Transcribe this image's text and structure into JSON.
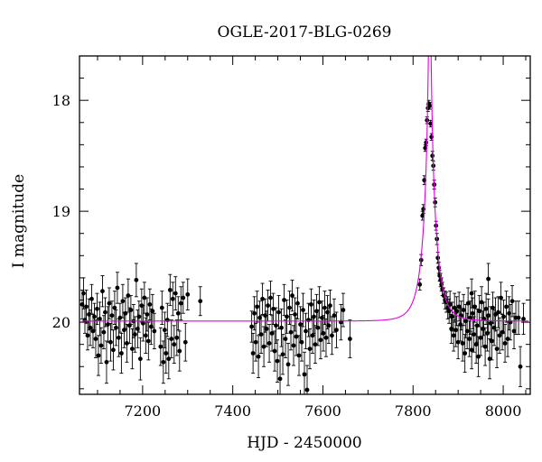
{
  "chart_data": {
    "type": "scatter",
    "title": "OGLE-2017-BLG-0269",
    "xlabel": "HJD - 2450000",
    "ylabel": "I magnitude",
    "xlim": [
      7060,
      8060
    ],
    "ylim": [
      20.65,
      17.6
    ],
    "y_inverted": true,
    "xticks": [
      7200,
      7400,
      7600,
      7800,
      8000
    ],
    "yticks": [
      18,
      19,
      20
    ],
    "grid": false,
    "colors": {
      "points": "#000000",
      "model": "#e000e0",
      "axes": "#000000"
    },
    "model": {
      "name": "",
      "baseline_mag": 19.99,
      "t0": 7837,
      "u0": 0.012,
      "tE": 28
    },
    "series": [
      {
        "name": "",
        "points": [
          [
            7066,
            19.84,
            0.13
          ],
          [
            7069,
            19.74,
            0.14
          ],
          [
            7072,
            19.98,
            0.12
          ],
          [
            7075,
            19.86,
            0.15
          ],
          [
            7078,
            20.12,
            0.13
          ],
          [
            7081,
            19.93,
            0.14
          ],
          [
            7084,
            20.05,
            0.16
          ],
          [
            7087,
            19.79,
            0.13
          ],
          [
            7090,
            20.08,
            0.15
          ],
          [
            7093,
            19.95,
            0.12
          ],
          [
            7096,
            20.15,
            0.17
          ],
          [
            7099,
            19.88,
            0.14
          ],
          [
            7102,
            20.3,
            0.18
          ],
          [
            7105,
            19.97,
            0.15
          ],
          [
            7108,
            20.21,
            0.16
          ],
          [
            7111,
            19.72,
            0.14
          ],
          [
            7114,
            20.09,
            0.15
          ],
          [
            7117,
            19.91,
            0.13
          ],
          [
            7120,
            20.36,
            0.19
          ],
          [
            7123,
            20.02,
            0.16
          ],
          [
            7126,
            19.83,
            0.14
          ],
          [
            7129,
            20.18,
            0.17
          ],
          [
            7132,
            19.94,
            0.13
          ],
          [
            7135,
            20.25,
            0.18
          ],
          [
            7138,
            19.87,
            0.15
          ],
          [
            7141,
            20.05,
            0.16
          ],
          [
            7144,
            19.69,
            0.14
          ],
          [
            7147,
            20.14,
            0.17
          ],
          [
            7150,
            19.96,
            0.13
          ],
          [
            7153,
            20.28,
            0.18
          ],
          [
            7156,
            19.81,
            0.15
          ],
          [
            7159,
            20.07,
            0.16
          ],
          [
            7162,
            19.92,
            0.14
          ],
          [
            7165,
            20.19,
            0.17
          ],
          [
            7168,
            19.76,
            0.15
          ],
          [
            7171,
            20.03,
            0.16
          ],
          [
            7174,
            19.89,
            0.13
          ],
          [
            7177,
            20.24,
            0.18
          ],
          [
            7180,
            19.99,
            0.15
          ],
          [
            7183,
            20.11,
            0.16
          ],
          [
            7186,
            19.62,
            0.15
          ],
          [
            7189,
            20.06,
            0.17
          ],
          [
            7192,
            19.95,
            0.14
          ],
          [
            7195,
            20.33,
            0.19
          ],
          [
            7198,
            19.85,
            0.15
          ],
          [
            7201,
            20.01,
            0.16
          ],
          [
            7204,
            19.78,
            0.14
          ],
          [
            7207,
            20.12,
            0.16
          ],
          [
            7210,
            19.93,
            0.15
          ],
          [
            7213,
            20.17,
            0.17
          ],
          [
            7216,
            19.84,
            0.14
          ],
          [
            7219,
            20.04,
            0.16
          ],
          [
            7222,
            19.9,
            0.15
          ],
          [
            7226,
            20.08,
            0.16
          ],
          [
            7240,
            20.22,
            0.17
          ],
          [
            7243,
            19.87,
            0.15
          ],
          [
            7246,
            20.36,
            0.19
          ],
          [
            7249,
            20.07,
            0.16
          ],
          [
            7252,
            20.28,
            0.18
          ],
          [
            7255,
            19.98,
            0.15
          ],
          [
            7258,
            20.33,
            0.18
          ],
          [
            7261,
            19.71,
            0.14
          ],
          [
            7264,
            20.15,
            0.17
          ],
          [
            7267,
            19.79,
            0.15
          ],
          [
            7270,
            20.2,
            0.17
          ],
          [
            7273,
            19.74,
            0.15
          ],
          [
            7276,
            20.14,
            0.16
          ],
          [
            7279,
            19.92,
            0.15
          ],
          [
            7282,
            20.26,
            0.18
          ],
          [
            7285,
            19.83,
            0.15
          ],
          [
            7290,
            19.78,
            0.14
          ],
          [
            7295,
            20.18,
            0.17
          ],
          [
            7300,
            19.75,
            0.14
          ],
          [
            7328,
            19.81,
            0.13
          ],
          [
            7442,
            20.04,
            0.14
          ],
          [
            7445,
            20.28,
            0.18
          ],
          [
            7448,
            19.92,
            0.15
          ],
          [
            7451,
            20.18,
            0.17
          ],
          [
            7454,
            19.86,
            0.14
          ],
          [
            7457,
            20.31,
            0.19
          ],
          [
            7460,
            19.96,
            0.15
          ],
          [
            7463,
            20.11,
            0.17
          ],
          [
            7466,
            19.79,
            0.14
          ],
          [
            7469,
            20.22,
            0.18
          ],
          [
            7472,
            19.94,
            0.15
          ],
          [
            7475,
            20.06,
            0.16
          ],
          [
            7478,
            19.85,
            0.14
          ],
          [
            7481,
            20.19,
            0.17
          ],
          [
            7484,
            19.78,
            0.15
          ],
          [
            7487,
            20.1,
            0.16
          ],
          [
            7490,
            19.88,
            0.14
          ],
          [
            7493,
            20.26,
            0.18
          ],
          [
            7496,
            20.03,
            0.16
          ],
          [
            7499,
            20.35,
            0.19
          ],
          [
            7502,
            19.91,
            0.15
          ],
          [
            7505,
            20.51,
            0.21
          ],
          [
            7508,
            20.05,
            0.17
          ],
          [
            7511,
            20.29,
            0.18
          ],
          [
            7514,
            19.8,
            0.14
          ],
          [
            7517,
            20.15,
            0.17
          ],
          [
            7520,
            19.95,
            0.15
          ],
          [
            7523,
            20.38,
            0.19
          ],
          [
            7526,
            19.87,
            0.15
          ],
          [
            7529,
            20.09,
            0.16
          ],
          [
            7532,
            19.76,
            0.14
          ],
          [
            7535,
            20.21,
            0.18
          ],
          [
            7538,
            19.93,
            0.15
          ],
          [
            7541,
            20.13,
            0.17
          ],
          [
            7544,
            19.83,
            0.14
          ],
          [
            7547,
            20.3,
            0.18
          ],
          [
            7550,
            20.02,
            0.16
          ],
          [
            7553,
            20.18,
            0.17
          ],
          [
            7556,
            19.89,
            0.15
          ],
          [
            7559,
            20.47,
            0.2
          ],
          [
            7562,
            20.08,
            0.16
          ],
          [
            7565,
            20.61,
            0.22
          ],
          [
            7568,
            19.98,
            0.15
          ],
          [
            7571,
            20.24,
            0.18
          ],
          [
            7574,
            19.84,
            0.14
          ],
          [
            7577,
            20.12,
            0.16
          ],
          [
            7580,
            19.95,
            0.15
          ],
          [
            7583,
            20.2,
            0.17
          ],
          [
            7586,
            19.9,
            0.15
          ],
          [
            7589,
            20.05,
            0.16
          ],
          [
            7592,
            19.82,
            0.14
          ],
          [
            7595,
            20.16,
            0.17
          ],
          [
            7598,
            19.96,
            0.15
          ],
          [
            7601,
            20.1,
            0.16
          ],
          [
            7604,
            19.87,
            0.15
          ],
          [
            7607,
            20.14,
            0.17
          ],
          [
            7610,
            19.91,
            0.15
          ],
          [
            7613,
            20.03,
            0.16
          ],
          [
            7616,
            19.85,
            0.14
          ],
          [
            7620,
            20.12,
            0.17
          ],
          [
            7625,
            19.94,
            0.15
          ],
          [
            7630,
            20.07,
            0.16
          ],
          [
            7640,
            20.0,
            0.16
          ],
          [
            7645,
            19.89,
            0.15
          ],
          [
            7660,
            20.15,
            0.17
          ],
          [
            7815,
            19.66,
            0.05
          ],
          [
            7818,
            19.44,
            0.05
          ],
          [
            7821,
            19.04,
            0.04
          ],
          [
            7823,
            18.98,
            0.04
          ],
          [
            7825,
            18.72,
            0.04
          ],
          [
            7827,
            18.43,
            0.03
          ],
          [
            7829,
            18.38,
            0.03
          ],
          [
            7831,
            18.18,
            0.03
          ],
          [
            7833,
            18.07,
            0.03
          ],
          [
            7835,
            18.03,
            0.03
          ],
          [
            7837,
            18.05,
            0.03
          ],
          [
            7839,
            18.21,
            0.03
          ],
          [
            7841,
            18.33,
            0.03
          ],
          [
            7843,
            18.5,
            0.04
          ],
          [
            7845,
            18.59,
            0.04
          ],
          [
            7847,
            18.76,
            0.04
          ],
          [
            7849,
            18.92,
            0.04
          ],
          [
            7851,
            19.13,
            0.04
          ],
          [
            7853,
            19.25,
            0.05
          ],
          [
            7855,
            19.42,
            0.05
          ],
          [
            7857,
            19.51,
            0.05
          ],
          [
            7859,
            19.58,
            0.05
          ],
          [
            7861,
            19.62,
            0.06
          ],
          [
            7863,
            19.66,
            0.06
          ],
          [
            7865,
            19.7,
            0.06
          ],
          [
            7868,
            19.76,
            0.07
          ],
          [
            7871,
            19.8,
            0.08
          ],
          [
            7874,
            19.82,
            0.09
          ],
          [
            7877,
            19.87,
            0.1
          ],
          [
            7880,
            19.9,
            0.11
          ],
          [
            7882,
            19.84,
            0.12
          ],
          [
            7885,
            20.06,
            0.13
          ],
          [
            7887,
            19.95,
            0.13
          ],
          [
            7890,
            20.12,
            0.14
          ],
          [
            7892,
            19.87,
            0.13
          ],
          [
            7895,
            20.07,
            0.15
          ],
          [
            7897,
            19.9,
            0.13
          ],
          [
            7900,
            20.18,
            0.15
          ],
          [
            7902,
            19.86,
            0.13
          ],
          [
            7905,
            20.02,
            0.15
          ],
          [
            7907,
            19.94,
            0.13
          ],
          [
            7910,
            20.19,
            0.16
          ],
          [
            7912,
            19.89,
            0.14
          ],
          [
            7915,
            20.28,
            0.17
          ],
          [
            7917,
            19.99,
            0.15
          ],
          [
            7920,
            20.08,
            0.16
          ],
          [
            7922,
            19.83,
            0.14
          ],
          [
            7925,
            20.15,
            0.16
          ],
          [
            7927,
            19.96,
            0.15
          ],
          [
            7930,
            20.25,
            0.17
          ],
          [
            7932,
            19.92,
            0.14
          ],
          [
            7935,
            20.11,
            0.16
          ],
          [
            7937,
            19.86,
            0.14
          ],
          [
            7940,
            20.2,
            0.17
          ],
          [
            7942,
            20.03,
            0.15
          ],
          [
            7945,
            20.31,
            0.18
          ],
          [
            7947,
            19.9,
            0.14
          ],
          [
            7950,
            20.14,
            0.16
          ],
          [
            7952,
            19.82,
            0.14
          ],
          [
            7955,
            20.06,
            0.16
          ],
          [
            7957,
            19.97,
            0.15
          ],
          [
            7960,
            20.22,
            0.17
          ],
          [
            7962,
            19.88,
            0.14
          ],
          [
            7965,
            20.1,
            0.16
          ],
          [
            7967,
            19.94,
            0.15
          ],
          [
            7970,
            20.33,
            0.18
          ],
          [
            7972,
            20.01,
            0.15
          ],
          [
            7975,
            20.17,
            0.17
          ],
          [
            7977,
            19.87,
            0.14
          ],
          [
            7980,
            20.05,
            0.16
          ],
          [
            7983,
            19.93,
            0.15
          ],
          [
            7986,
            20.24,
            0.17
          ],
          [
            7989,
            19.91,
            0.14
          ],
          [
            7992,
            20.12,
            0.16
          ],
          [
            7995,
            19.78,
            0.14
          ],
          [
            7998,
            20.09,
            0.16
          ],
          [
            8001,
            19.95,
            0.15
          ],
          [
            8004,
            20.19,
            0.17
          ],
          [
            8007,
            19.86,
            0.14
          ],
          [
            8010,
            20.15,
            0.16
          ],
          [
            8013,
            19.92,
            0.15
          ],
          [
            8016,
            20.0,
            0.16
          ],
          [
            8020,
            19.81,
            0.14
          ],
          [
            8024,
            20.08,
            0.16
          ],
          [
            8028,
            19.96,
            0.15
          ],
          [
            7967,
            19.61,
            0.14
          ],
          [
            7930,
            19.74,
            0.13
          ],
          [
            8034,
            19.96,
            0.15
          ],
          [
            8038,
            20.4,
            0.18
          ],
          [
            8045,
            19.97,
            0.14
          ]
        ]
      }
    ]
  }
}
